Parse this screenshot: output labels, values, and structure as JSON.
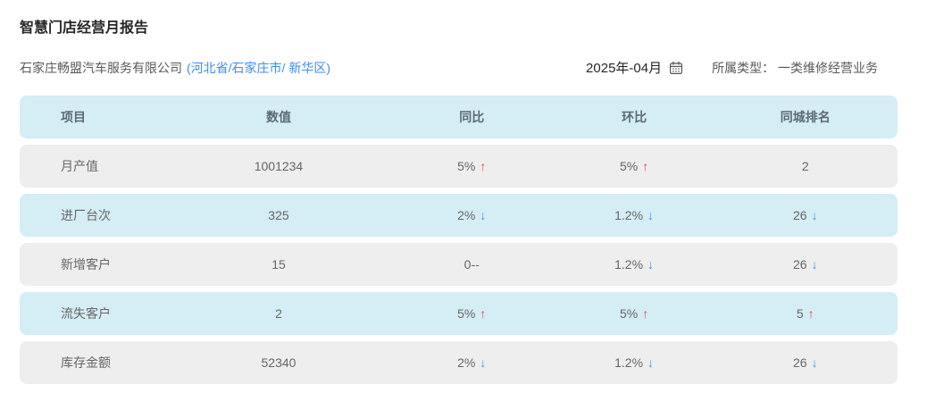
{
  "page": {
    "title": "智慧门店经营月报告"
  },
  "header": {
    "company": "石家庄畅盟汽车服务有限公司",
    "region_link": "(河北省/石家庄市/ 新华区)",
    "month": "2025年-04月",
    "calendar_icon": "calendar-icon",
    "type_label": "所属类型：",
    "type_value": "一类维修经营业务"
  },
  "table": {
    "columns": [
      "项目",
      "数值",
      "同比",
      "环比",
      "同城排名"
    ],
    "rows": [
      {
        "item": "月产值",
        "value": "1001234",
        "yoy": "5%",
        "yoy_dir": "up",
        "mom": "5%",
        "mom_dir": "up",
        "rank": "2",
        "rank_dir": "none"
      },
      {
        "item": "进厂台次",
        "value": "325",
        "yoy": "2%",
        "yoy_dir": "down",
        "mom": "1.2%",
        "mom_dir": "down",
        "rank": "26",
        "rank_dir": "down"
      },
      {
        "item": "新增客户",
        "value": "15",
        "yoy": "0--",
        "yoy_dir": "none",
        "mom": "1.2%",
        "mom_dir": "down",
        "rank": "26",
        "rank_dir": "down"
      },
      {
        "item": "流失客户",
        "value": "2",
        "yoy": "5%",
        "yoy_dir": "up",
        "mom": "5%",
        "mom_dir": "up",
        "rank": "5",
        "rank_dir": "up"
      },
      {
        "item": "库存金额",
        "value": "52340",
        "yoy": "2%",
        "yoy_dir": "down",
        "mom": "1.2%",
        "mom_dir": "down",
        "rank": "26",
        "rank_dir": "down"
      }
    ]
  },
  "colors": {
    "header_row_bg": "#d5edf5",
    "gray_row_bg": "#eeeeee",
    "blue_row_bg": "#d5edf5",
    "link_blue": "#3d8df5",
    "up_arrow_red": "#f1444c",
    "down_arrow_blue": "#4090e8",
    "header_text": "#5a6a72",
    "cell_text": "#666666"
  }
}
